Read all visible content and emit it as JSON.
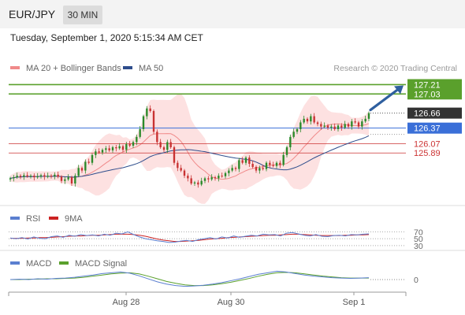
{
  "header": {
    "symbol": "EUR/JPY",
    "timeframe": "30 MIN",
    "datetime": "Tuesday, September 1, 2020 5:15:34 AM CET"
  },
  "colors": {
    "ma20": "#f08a8a",
    "bollinger_fill": "#fddcdc",
    "ma50": "#2e4d8c",
    "resistance_green": "#5aa02c",
    "support_blue": "#3a6fd8",
    "level_red": "#cc3333",
    "price_label_dark": "#333333",
    "up_candle": "#2a8a2a",
    "down_candle": "#c83232",
    "rsi": "#5b7fd0",
    "rsi_ma": "#cc2222",
    "macd": "#5b7fd0",
    "macd_signal": "#5aa02c",
    "arrow": "#2f5f9f"
  },
  "chart_data": {
    "type": "candlestick",
    "legend": [
      {
        "label": "MA 20 + Bollinger Bands",
        "color": "#f08a8a"
      },
      {
        "label": "MA 50",
        "color": "#2e4d8c"
      }
    ],
    "credit": "Research © 2020 Trading Central",
    "x_ticks": [
      "Aug 28",
      "Aug 30",
      "Sep 1"
    ],
    "price": {
      "current": 126.66,
      "levels": [
        {
          "value": 127.21,
          "kind": "resistance",
          "color": "#5aa02c"
        },
        {
          "value": 127.03,
          "kind": "resistance",
          "color": "#5aa02c"
        },
        {
          "value": 126.37,
          "kind": "pivot",
          "color": "#3a6fd8"
        },
        {
          "value": 126.07,
          "kind": "support",
          "color": "#cc3333"
        },
        {
          "value": 125.89,
          "kind": "support",
          "color": "#cc3333"
        }
      ],
      "projection": "up toward 127.21",
      "close_series": [
        125.4,
        125.42,
        125.45,
        125.43,
        125.46,
        125.44,
        125.45,
        125.42,
        125.44,
        125.46,
        125.43,
        125.45,
        125.44,
        125.47,
        125.43,
        125.35,
        125.38,
        125.42,
        125.3,
        125.45,
        125.6,
        125.55,
        125.72,
        125.7,
        125.85,
        125.92,
        125.9,
        125.95,
        125.98,
        125.94,
        126.0,
        125.98,
        126.02,
        125.95,
        126.06,
        126.03,
        126.1,
        126.2,
        126.35,
        126.6,
        126.75,
        126.7,
        126.3,
        126.1,
        126.0,
        125.95,
        126.1,
        126.0,
        125.7,
        125.6,
        125.55,
        125.45,
        125.4,
        125.3,
        125.32,
        125.28,
        125.35,
        125.4,
        125.38,
        125.42,
        125.4,
        125.45,
        125.44,
        125.5,
        125.55,
        125.6,
        125.58,
        125.75,
        125.7,
        125.8,
        125.68,
        125.62,
        125.55,
        125.6,
        125.58,
        125.7,
        125.66,
        125.64,
        125.7,
        125.66,
        125.85,
        126.0,
        126.2,
        126.3,
        126.35,
        126.48,
        126.55,
        126.5,
        126.6,
        126.48,
        126.45,
        126.4,
        126.42,
        126.38,
        126.4,
        126.35,
        126.42,
        126.38,
        126.45,
        126.4,
        126.5,
        126.48,
        126.4,
        126.5,
        126.55,
        126.66
      ]
    },
    "rsi": {
      "legend": [
        {
          "label": "RSI",
          "color": "#5b7fd0"
        },
        {
          "label": "9MA",
          "color": "#cc2222"
        }
      ],
      "levels": [
        "70",
        "50",
        "30"
      ],
      "rsi_series": [
        52,
        50,
        53,
        49,
        55,
        51,
        50,
        56,
        58,
        54,
        60,
        57,
        62,
        59,
        61,
        58,
        63,
        60,
        66,
        64,
        70,
        62,
        55,
        50,
        47,
        44,
        42,
        39,
        40,
        43,
        45,
        42,
        47,
        50,
        53,
        49,
        55,
        52,
        58,
        54,
        57,
        60,
        58,
        63,
        61,
        62,
        58,
        66,
        68,
        64,
        60,
        58,
        62,
        57,
        56,
        59,
        60,
        58,
        62,
        61,
        63,
        64
      ],
      "ma_series": [
        51,
        51,
        51,
        52,
        52,
        53,
        53,
        54,
        55,
        56,
        57,
        58,
        58,
        59,
        60,
        60,
        61,
        62,
        63,
        63,
        63,
        62,
        60,
        57,
        53,
        49,
        46,
        44,
        42,
        42,
        43,
        44,
        45,
        47,
        49,
        50,
        51,
        53,
        54,
        55,
        56,
        57,
        58,
        59,
        60,
        60,
        61,
        62,
        63,
        63,
        62,
        61,
        60,
        59,
        59,
        59,
        59,
        60,
        60,
        61,
        61,
        62
      ]
    },
    "macd": {
      "legend": [
        {
          "label": "MACD",
          "color": "#5b7fd0"
        },
        {
          "label": "MACD Signal",
          "color": "#5aa02c"
        }
      ],
      "zero_label": "0",
      "macd_series": [
        0.0,
        0.01,
        0.0,
        0.02,
        0.01,
        0.03,
        0.04,
        0.06,
        0.09,
        0.12,
        0.16,
        0.18,
        0.2,
        0.17,
        0.1,
        0.02,
        -0.06,
        -0.12,
        -0.16,
        -0.18,
        -0.17,
        -0.15,
        -0.12,
        -0.08,
        -0.03,
        0.02,
        0.08,
        0.14,
        0.18,
        0.22,
        0.2,
        0.16,
        0.12,
        0.09,
        0.07,
        0.05,
        0.04,
        0.03,
        0.04,
        0.05
      ],
      "signal_series": [
        0.0,
        0.0,
        0.01,
        0.01,
        0.02,
        0.02,
        0.03,
        0.04,
        0.06,
        0.09,
        0.12,
        0.15,
        0.17,
        0.18,
        0.15,
        0.09,
        0.02,
        -0.05,
        -0.1,
        -0.14,
        -0.16,
        -0.16,
        -0.14,
        -0.11,
        -0.07,
        -0.02,
        0.03,
        0.09,
        0.14,
        0.18,
        0.19,
        0.18,
        0.15,
        0.12,
        0.09,
        0.07,
        0.05,
        0.04,
        0.04,
        0.04
      ]
    }
  }
}
